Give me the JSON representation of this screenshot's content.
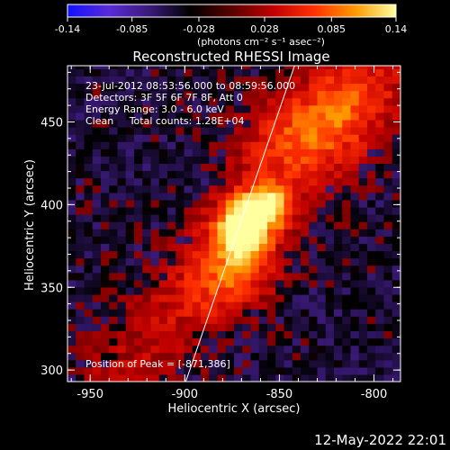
{
  "chart_data": {
    "type": "heatmap",
    "title": "Reconstructed RHESSI Image",
    "xlabel": "Heliocentric X (arcsec)",
    "ylabel": "Heliocentric Y (arcsec)",
    "xlim": [
      -962,
      -786
    ],
    "ylim": [
      293,
      484
    ],
    "x_ticks": [
      -950,
      -900,
      -850,
      -800
    ],
    "y_ticks": [
      300,
      350,
      400,
      450
    ],
    "info_lines": [
      "23-Jul-2012 08:53:56.000 to 08:59:56.000",
      "Detectors: 3F 5F 6F 7F 8F, Att 0",
      "Energy Range: 3.0 - 6.0 keV",
      "Clean     Total counts: 1.28E+04"
    ],
    "peak_label": "Position of Peak = [-871,386]",
    "peak": [
      -871,
      386
    ],
    "colorbar": {
      "range": [
        -0.14,
        0.14
      ],
      "tick_labels": [
        "-0.14",
        "-0.085",
        "-0.028",
        "0.028",
        "0.085",
        "0.14"
      ],
      "label": "(photons cm⁻² s⁻¹ asec⁻²)",
      "colors": [
        "#1010ff",
        "#5a2bd8",
        "#3a1a78",
        "#000000",
        "#5a0000",
        "#c00000",
        "#ff3000",
        "#ff9a00",
        "#ffffa0"
      ]
    },
    "limb_line": {
      "x": [
        -899.5,
        -842
      ],
      "y": [
        293,
        484
      ]
    },
    "sources": [
      {
        "x": -871,
        "y": 386,
        "amp": 0.14,
        "sx": 10,
        "sy": 12
      },
      {
        "x": -857,
        "y": 398,
        "amp": 0.1,
        "sx": 8,
        "sy": 9
      },
      {
        "x": -875,
        "y": 363,
        "amp": 0.05,
        "sx": 14,
        "sy": 14
      },
      {
        "x": -842,
        "y": 438,
        "amp": 0.05,
        "sx": 25,
        "sy": 18
      },
      {
        "x": -818,
        "y": 462,
        "amp": 0.04,
        "sx": 20,
        "sy": 16
      },
      {
        "x": -882,
        "y": 345,
        "amp": 0.03,
        "sx": 20,
        "sy": 14
      }
    ]
  },
  "footer": {
    "timestamp": "12-May-2022 22:01"
  }
}
